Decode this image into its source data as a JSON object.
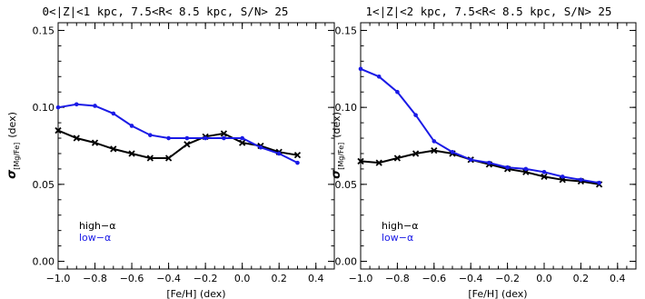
{
  "colors": {
    "high_alpha": "#000000",
    "low_alpha": "#1a1ae6"
  },
  "chart_data": [
    {
      "type": "line",
      "title": "0<|Z|<1 kpc, 7.5<R< 8.5 kpc, S/N> 25",
      "xlabel": "[Fe/H] (dex)",
      "ylabel_main": "σ",
      "ylabel_sub": "[Mg/Fe]",
      "ylabel_unit": "(dex)",
      "xlim": [
        -1.0,
        0.5
      ],
      "ylim": [
        -0.005,
        0.155
      ],
      "xticks": [
        -1.0,
        -0.8,
        -0.6,
        -0.4,
        -0.2,
        0.0,
        0.2,
        0.4
      ],
      "xtick_labels": [
        "−1.0",
        "−0.8",
        "−0.6",
        "−0.4",
        "−0.2",
        "0.0",
        "0.2",
        "0.4"
      ],
      "yticks": [
        0.0,
        0.05,
        0.1,
        0.15
      ],
      "ytick_labels": [
        "0.00",
        "0.05",
        "0.10",
        "0.15"
      ],
      "grid": false,
      "legend": "bottom-left",
      "series": [
        {
          "name": "high−α",
          "color": "#000000",
          "marker": "x",
          "x": [
            -1.0,
            -0.9,
            -0.8,
            -0.7,
            -0.6,
            -0.5,
            -0.4,
            -0.3,
            -0.2,
            -0.1,
            0.0,
            0.1,
            0.2,
            0.3
          ],
          "y": [
            0.085,
            0.08,
            0.077,
            0.073,
            0.07,
            0.067,
            0.067,
            0.076,
            0.081,
            0.083,
            0.077,
            0.075,
            0.071,
            0.069
          ]
        },
        {
          "name": "low−α",
          "color": "#1a1ae6",
          "marker": "dot",
          "x": [
            -1.0,
            -0.9,
            -0.8,
            -0.7,
            -0.6,
            -0.5,
            -0.4,
            -0.3,
            -0.2,
            -0.1,
            0.0,
            0.1,
            0.2,
            0.3
          ],
          "y": [
            0.1,
            0.102,
            0.101,
            0.096,
            0.088,
            0.082,
            0.08,
            0.08,
            0.08,
            0.08,
            0.08,
            0.074,
            0.07,
            0.064
          ]
        }
      ]
    },
    {
      "type": "line",
      "title": "1<|Z|<2 kpc, 7.5<R< 8.5 kpc, S/N> 25",
      "xlabel": "[Fe/H] (dex)",
      "ylabel_main": "σ",
      "ylabel_sub": "[Mg/Fe]",
      "ylabel_unit": "(dex)",
      "xlim": [
        -1.0,
        0.5
      ],
      "ylim": [
        -0.005,
        0.155
      ],
      "xticks": [
        -1.0,
        -0.8,
        -0.6,
        -0.4,
        -0.2,
        0.0,
        0.2,
        0.4
      ],
      "xtick_labels": [
        "−1.0",
        "−0.8",
        "−0.6",
        "−0.4",
        "−0.2",
        "0.0",
        "0.2",
        "0.4"
      ],
      "yticks": [
        0.0,
        0.05,
        0.1,
        0.15
      ],
      "ytick_labels": [
        "0.00",
        "0.05",
        "0.10",
        "0.15"
      ],
      "grid": false,
      "legend": "bottom-left",
      "series": [
        {
          "name": "high−α",
          "color": "#000000",
          "marker": "x",
          "x": [
            -1.0,
            -0.9,
            -0.8,
            -0.7,
            -0.6,
            -0.5,
            -0.4,
            -0.3,
            -0.2,
            -0.1,
            0.0,
            0.1,
            0.2,
            0.3
          ],
          "y": [
            0.065,
            0.064,
            0.067,
            0.07,
            0.072,
            0.07,
            0.066,
            0.063,
            0.06,
            0.058,
            0.055,
            0.053,
            0.052,
            0.05
          ]
        },
        {
          "name": "low−α",
          "color": "#1a1ae6",
          "marker": "dot",
          "x": [
            -1.0,
            -0.9,
            -0.8,
            -0.7,
            -0.6,
            -0.5,
            -0.4,
            -0.3,
            -0.2,
            -0.1,
            0.0,
            0.1,
            0.2,
            0.3
          ],
          "y": [
            0.125,
            0.12,
            0.11,
            0.095,
            0.078,
            0.071,
            0.066,
            0.064,
            0.061,
            0.06,
            0.058,
            0.055,
            0.053,
            0.051
          ]
        }
      ]
    }
  ]
}
